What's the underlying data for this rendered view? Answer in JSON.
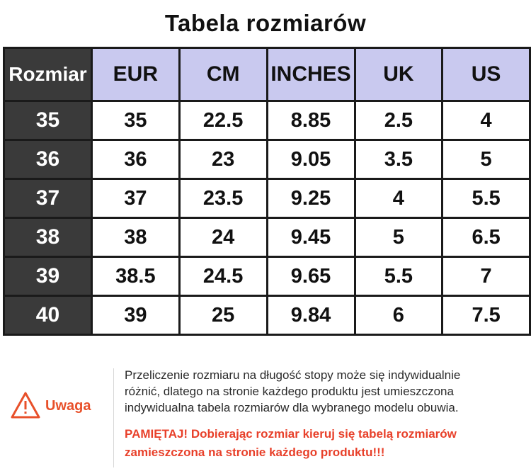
{
  "title": "Tabela rozmiarów",
  "table": {
    "headers": [
      "Rozmiar",
      "EUR",
      "CM",
      "INCHES",
      "UK",
      "US"
    ],
    "rows": [
      [
        "35",
        "35",
        "22.5",
        "8.85",
        "2.5",
        "4"
      ],
      [
        "36",
        "36",
        "23",
        "9.05",
        "3.5",
        "5"
      ],
      [
        "37",
        "37",
        "23.5",
        "9.25",
        "4",
        "5.5"
      ],
      [
        "38",
        "38",
        "24",
        "9.45",
        "5",
        "6.5"
      ],
      [
        "39",
        "38.5",
        "24.5",
        "9.65",
        "5.5",
        "7"
      ],
      [
        "40",
        "39",
        "25",
        "9.84",
        "6",
        "7.5"
      ]
    ]
  },
  "warning": {
    "icon": "warning-triangle-icon",
    "label": "Uwaga",
    "note_lines": [
      "Przeliczenie rozmiaru na długość stopy może się indywidualnie",
      "różnić, dlatego na stronie każdego produktu jest umieszczona",
      "indywidualna tabela rozmiarów dla wybranego modelu obuwia."
    ],
    "remember_lines": [
      "PAMIĘTAJ! Dobierając rozmiar kieruj się tabelą rozmiarów",
      "zamieszczona na stronie każdego produktu!!!"
    ]
  },
  "colors": {
    "header_bg": "#c9c9ef",
    "rowhead_bg": "#3a3a3a",
    "accent": "#e8502a"
  }
}
